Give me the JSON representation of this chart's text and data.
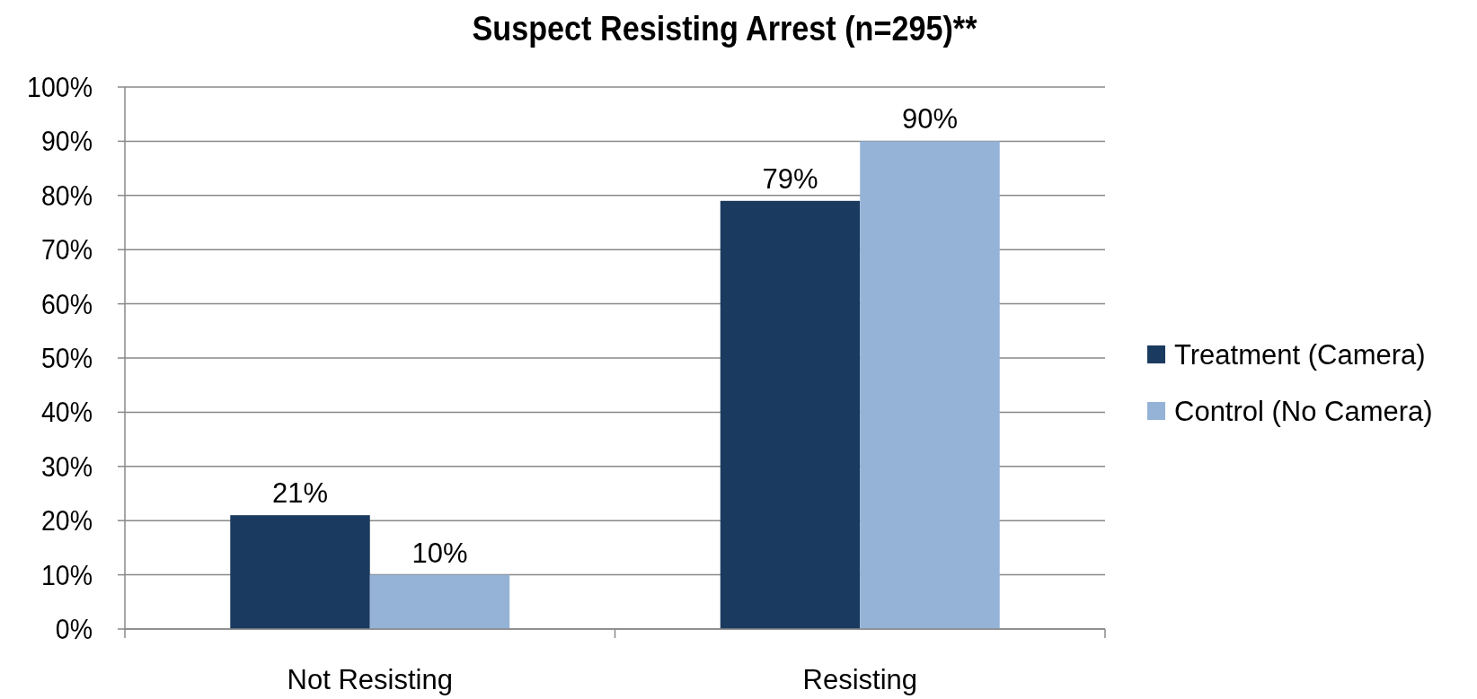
{
  "chart_data": {
    "type": "bar",
    "title": "Suspect Resisting Arrest (n=295)**",
    "categories": [
      "Not Resisting",
      "Resisting"
    ],
    "series": [
      {
        "name": "Treatment (Camera)",
        "color": "#1b3a5f",
        "values": [
          21,
          79
        ],
        "value_labels": [
          "21%",
          "79%"
        ]
      },
      {
        "name": "Control (No Camera)",
        "color": "#95b3d7",
        "values": [
          10,
          90
        ],
        "value_labels": [
          "10%",
          "90%"
        ]
      }
    ],
    "ylim": [
      0,
      100
    ],
    "yticks": [
      {
        "value": 0,
        "label": "0%"
      },
      {
        "value": 10,
        "label": "10%"
      },
      {
        "value": 20,
        "label": "20%"
      },
      {
        "value": 30,
        "label": "30%"
      },
      {
        "value": 40,
        "label": "40%"
      },
      {
        "value": 50,
        "label": "50%"
      },
      {
        "value": 60,
        "label": "60%"
      },
      {
        "value": 70,
        "label": "70%"
      },
      {
        "value": 80,
        "label": "80%"
      },
      {
        "value": 90,
        "label": "90%"
      },
      {
        "value": 100,
        "label": "100%"
      }
    ],
    "grid": "y",
    "legend": "right"
  }
}
